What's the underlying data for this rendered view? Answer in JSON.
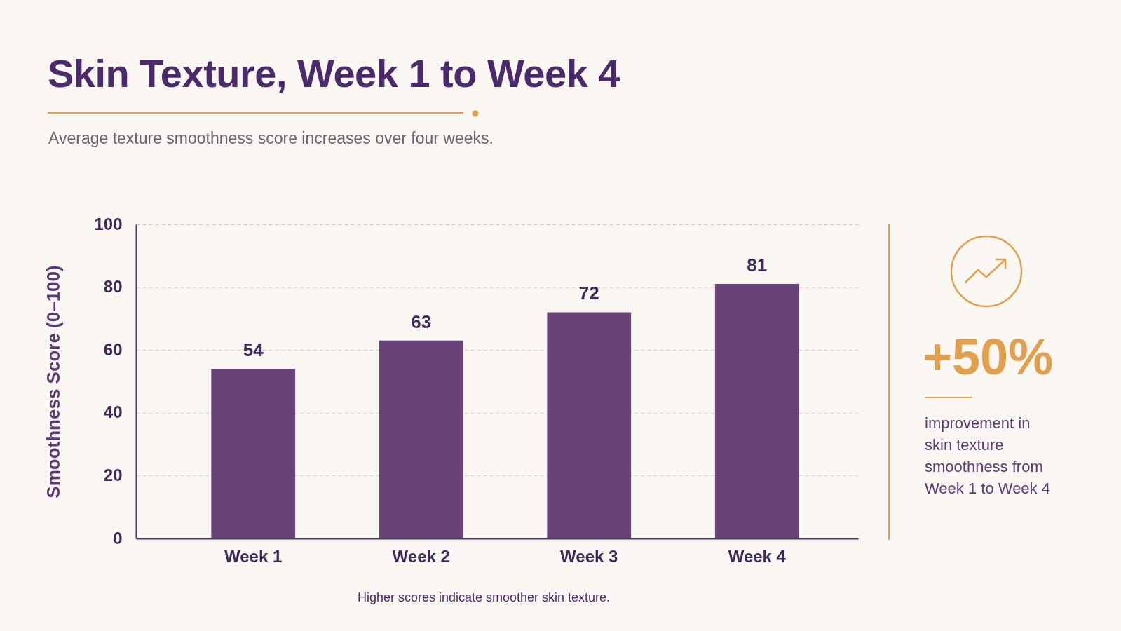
{
  "chart_data": {
    "type": "bar",
    "title": "Skin Texture, Week 1 to Week 4",
    "subtitle": "Average texture smoothness score increases over four weeks.",
    "ylabel": "Smoothness Score (0–100)",
    "categories": [
      "Week 1",
      "Week 2",
      "Week 3",
      "Week 4"
    ],
    "values": [
      54,
      63,
      72,
      81
    ],
    "color": "#6a427a",
    "ylim": [
      0,
      100
    ],
    "yticks": [
      0,
      20,
      40,
      60,
      80,
      100
    ],
    "grid": "y",
    "data_labels": true,
    "annotations": [
      "+50%",
      "improvement in skin texture smoothness from Week 1 to Week 4",
      "Higher scores indicate smoother skin texture."
    ]
  }
}
